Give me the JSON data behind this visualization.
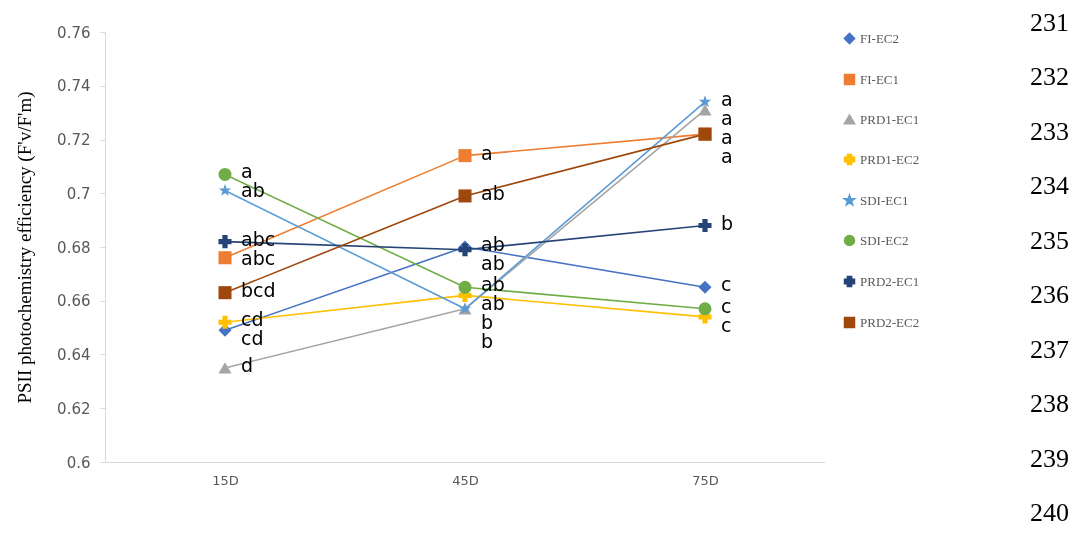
{
  "chart_data": {
    "type": "line",
    "ylabel": "PSII photochemistry efficiency (F'v/F'm)",
    "categories": [
      "15D",
      "45D",
      "75D"
    ],
    "series": [
      {
        "name": "FI-EC2",
        "color": "#4472c4",
        "marker": "diamond",
        "values": [
          0.649,
          0.68,
          0.665
        ]
      },
      {
        "name": "FI-EC1",
        "color": "#ed7d31",
        "marker": "square",
        "values": [
          0.676,
          0.714,
          0.722
        ]
      },
      {
        "name": "PRD1-EC1",
        "color": "#a5a5a5",
        "marker": "triangle",
        "values": [
          0.635,
          0.657,
          0.731
        ]
      },
      {
        "name": "PRD1-EC2",
        "color": "#ffc000",
        "marker": "cross",
        "values": [
          0.652,
          0.662,
          0.654
        ]
      },
      {
        "name": "SDI-EC1",
        "color": "#5b9bd5",
        "marker": "star",
        "values": [
          0.701,
          0.657,
          0.734
        ]
      },
      {
        "name": "SDI-EC2",
        "color": "#70ad47",
        "marker": "circle",
        "values": [
          0.707,
          0.665,
          0.657
        ]
      },
      {
        "name": "PRD2-EC1",
        "color": "#264478",
        "marker": "cross",
        "values": [
          0.682,
          0.679,
          0.688
        ]
      },
      {
        "name": "PRD2-EC2",
        "color": "#9e480e",
        "marker": "square",
        "values": [
          0.663,
          0.699,
          0.722
        ]
      }
    ],
    "ylim": [
      0.6,
      0.76
    ],
    "yticks": [
      0.6,
      0.62,
      0.64,
      0.66,
      0.68,
      0.7,
      0.72,
      0.74,
      0.76
    ],
    "grid": false,
    "legend": "right",
    "line_style": "solid",
    "annotations": [
      {
        "text": "a",
        "x": "15D",
        "y": 0.707
      },
      {
        "text": "ab",
        "x": "15D",
        "y": 0.701
      },
      {
        "text": "abc",
        "x": "15D",
        "y": 0.682
      },
      {
        "text": "abc",
        "x": "15D",
        "y": 0.676
      },
      {
        "text": "bcd",
        "x": "15D",
        "y": 0.663
      },
      {
        "text": "cd",
        "x": "15D",
        "y": 0.652
      },
      {
        "text": "cd",
        "x": "15D",
        "y": 0.649
      },
      {
        "text": "d",
        "x": "15D",
        "y": 0.635
      },
      {
        "text": "a",
        "x": "45D",
        "y": 0.714
      },
      {
        "text": "ab",
        "x": "45D",
        "y": 0.699
      },
      {
        "text": "ab",
        "x": "45D",
        "y": 0.68
      },
      {
        "text": "ab",
        "x": "45D",
        "y": 0.679
      },
      {
        "text": "ab",
        "x": "45D",
        "y": 0.665
      },
      {
        "text": "ab",
        "x": "45D",
        "y": 0.662
      },
      {
        "text": "b",
        "x": "45D",
        "y": 0.657
      },
      {
        "text": "b",
        "x": "45D",
        "y": 0.657
      },
      {
        "text": "a",
        "x": "75D",
        "y": 0.734
      },
      {
        "text": "a",
        "x": "75D",
        "y": 0.731
      },
      {
        "text": "a",
        "x": "75D",
        "y": 0.722
      },
      {
        "text": "a",
        "x": "75D",
        "y": 0.722
      },
      {
        "text": "b",
        "x": "75D",
        "y": 0.688
      },
      {
        "text": "c",
        "x": "75D",
        "y": 0.665
      },
      {
        "text": "c",
        "x": "75D",
        "y": 0.657
      },
      {
        "text": "c",
        "x": "75D",
        "y": 0.654
      },
      "231",
      "232",
      "233",
      "234",
      "235",
      "236",
      "237",
      "238",
      "239",
      "240"
    ]
  }
}
